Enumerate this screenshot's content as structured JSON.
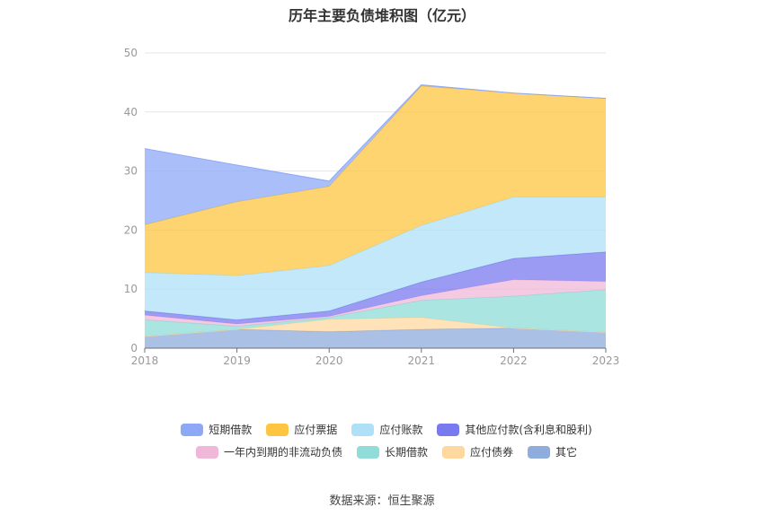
{
  "title": "历年主要负债堆积图（亿元）",
  "source": "数据来源：恒生聚源",
  "chart_data": {
    "type": "area",
    "stacked": true,
    "x": [
      "2018",
      "2019",
      "2020",
      "2021",
      "2022",
      "2023"
    ],
    "ylim": [
      0,
      50
    ],
    "yticks": [
      0,
      10,
      20,
      30,
      40,
      50
    ],
    "grid": true,
    "legend_position": "bottom",
    "series": [
      {
        "name": "其它",
        "color": "#8eacdc",
        "values": [
          2.0,
          3.2,
          2.8,
          3.2,
          3.4,
          2.7
        ]
      },
      {
        "name": "应付债券",
        "color": "#ffd8a0",
        "values": [
          0.0,
          0.0,
          2.1,
          2.0,
          0.0,
          0.0
        ]
      },
      {
        "name": "长期借款",
        "color": "#8fdcd8",
        "values": [
          2.8,
          0.5,
          0.3,
          2.9,
          5.4,
          7.2
        ]
      },
      {
        "name": "一年内到期的非流动负债",
        "color": "#f0b8d8",
        "values": [
          0.8,
          0.4,
          0.2,
          0.8,
          2.8,
          1.4
        ]
      },
      {
        "name": "其他应付款(含利息和股利)",
        "color": "#7a7af0",
        "values": [
          0.7,
          0.7,
          0.9,
          2.3,
          3.6,
          5.0
        ]
      },
      {
        "name": "应付账款",
        "color": "#aee0f8",
        "values": [
          6.5,
          7.5,
          7.7,
          9.6,
          10.4,
          9.3
        ]
      },
      {
        "name": "应付票据",
        "color": "#fec542",
        "values": [
          8.1,
          12.5,
          13.4,
          23.6,
          17.6,
          16.7
        ]
      },
      {
        "name": "短期借款",
        "color": "#8ea8f8",
        "values": [
          12.9,
          6.2,
          0.9,
          0.2,
          0.0,
          0.0
        ]
      }
    ]
  },
  "legend": {
    "rows": [
      [
        {
          "label": "短期借款",
          "color": "#8ea8f8"
        },
        {
          "label": "应付票据",
          "color": "#fec542"
        },
        {
          "label": "应付账款",
          "color": "#aee0f8"
        },
        {
          "label": "其他应付款(含利息和股利)",
          "color": "#7a7af0"
        }
      ],
      [
        {
          "label": "一年内到期的非流动负债",
          "color": "#f0b8d8"
        },
        {
          "label": "长期借款",
          "color": "#8fdcd8"
        },
        {
          "label": "应付债券",
          "color": "#ffd8a0"
        },
        {
          "label": "其它",
          "color": "#8eacdc"
        }
      ]
    ]
  }
}
